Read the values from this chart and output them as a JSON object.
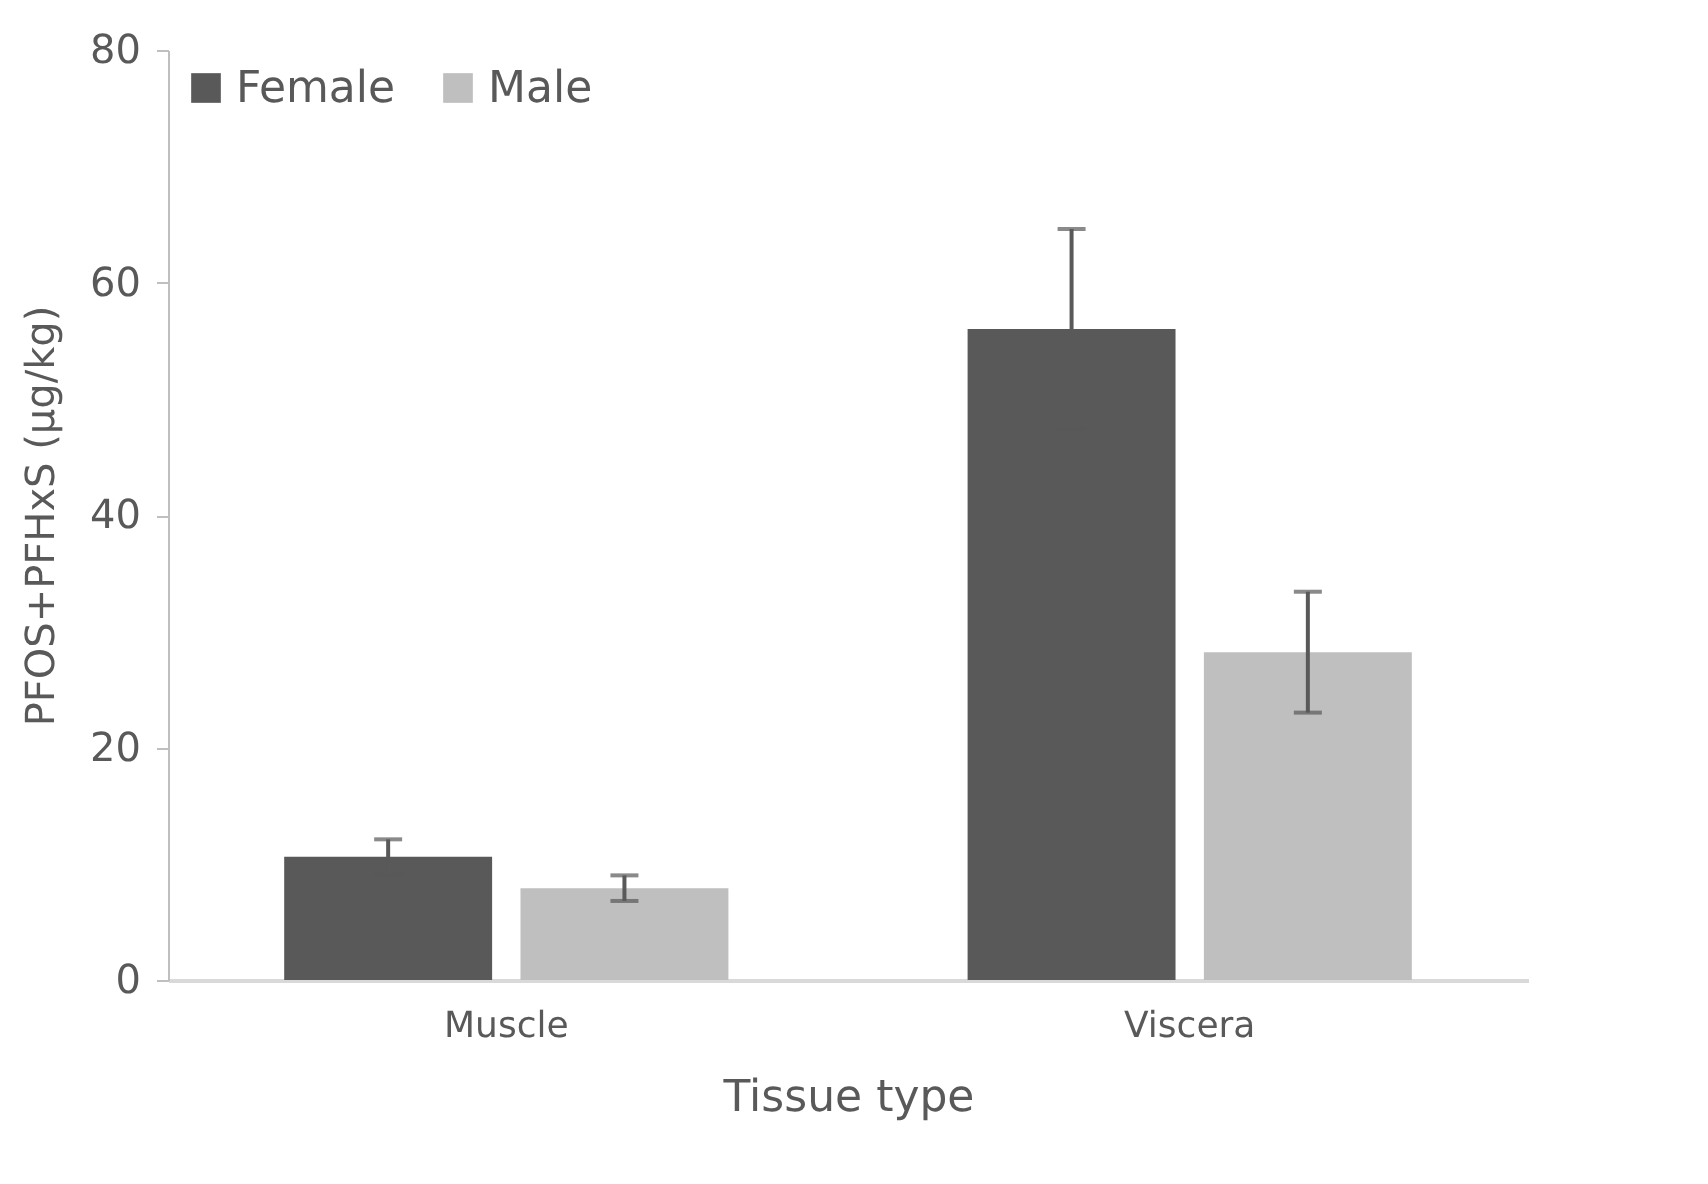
{
  "chart_data": {
    "type": "bar",
    "xlabel": "Tissue type",
    "ylabel": "PFOS+PFHxS (µg/kg)",
    "categories": [
      "Muscle",
      "Viscera"
    ],
    "series": [
      {
        "name": "Female",
        "color": "#595959",
        "values": [
          10.6,
          56.0
        ],
        "errors": [
          1.5,
          8.6
        ]
      },
      {
        "name": "Male",
        "color": "#bfbfbf",
        "values": [
          7.9,
          28.2
        ],
        "errors": [
          1.1,
          5.2
        ]
      }
    ],
    "ylim": [
      0,
      80
    ],
    "yticks": [
      0,
      20,
      40,
      60,
      80
    ],
    "grid": false,
    "legend": "top left"
  }
}
